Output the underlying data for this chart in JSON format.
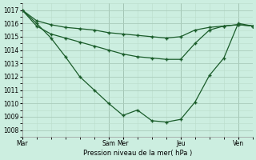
{
  "background_color": "#cceee0",
  "line_color": "#1a5c2a",
  "grid_color_major": "#aaccbb",
  "grid_color_minor": "#bbddcc",
  "ylabel": "Pression niveau de la mer( hPa )",
  "ylim": [
    1007.5,
    1017.5
  ],
  "yticks": [
    1008,
    1009,
    1010,
    1011,
    1012,
    1013,
    1014,
    1015,
    1016,
    1017
  ],
  "xtick_labels": [
    "Mar",
    "Sam",
    "Mer",
    "Jeu",
    "Ven"
  ],
  "xtick_positions": [
    0,
    6,
    7,
    11,
    15
  ],
  "xmax": 16,
  "series": [
    {
      "x": [
        0,
        1,
        2,
        3,
        4,
        5,
        6,
        7,
        8,
        9,
        10,
        11,
        12,
        13,
        14,
        15,
        16
      ],
      "y": [
        1017.0,
        1016.2,
        1015.9,
        1015.7,
        1015.6,
        1015.5,
        1015.3,
        1015.2,
        1015.1,
        1015.0,
        1014.9,
        1015.0,
        1015.5,
        1015.7,
        1015.8,
        1015.9,
        1015.8
      ]
    },
    {
      "x": [
        0,
        1,
        2,
        3,
        4,
        5,
        6,
        7,
        8,
        9,
        10,
        11,
        12,
        13,
        14,
        15,
        16
      ],
      "y": [
        1017.0,
        1015.8,
        1015.2,
        1014.9,
        1014.6,
        1014.3,
        1014.0,
        1013.7,
        1013.5,
        1013.4,
        1013.3,
        1013.3,
        1014.5,
        1015.5,
        1015.8,
        1015.9,
        1015.8
      ]
    },
    {
      "x": [
        0,
        1,
        2,
        3,
        4,
        5,
        6,
        7,
        8,
        9,
        10,
        11,
        12,
        13,
        14,
        15,
        16
      ],
      "y": [
        1017.0,
        1016.0,
        1014.9,
        1013.5,
        1012.0,
        1011.0,
        1010.0,
        1009.1,
        1009.5,
        1008.7,
        1008.6,
        1008.8,
        1010.1,
        1012.1,
        1013.4,
        1016.0,
        1015.8
      ]
    }
  ]
}
